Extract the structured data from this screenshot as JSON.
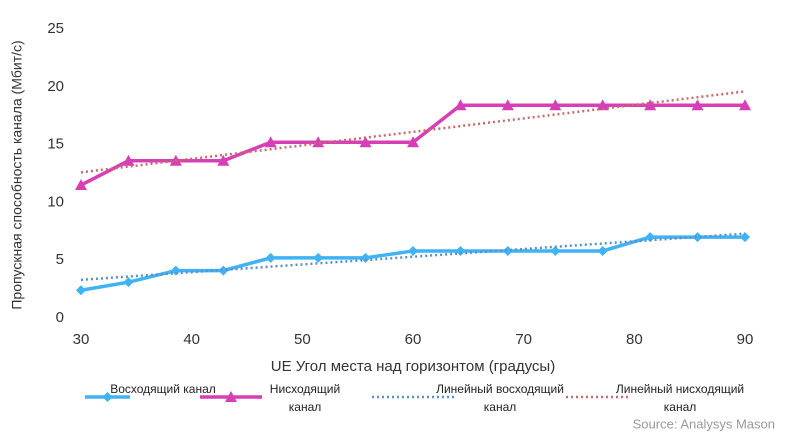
{
  "chart_data": {
    "type": "line",
    "x_label": "UE Угол места над горизонтом (градусы)",
    "y_label": "Пропускная способность канала (Мбит/с)",
    "source": "Source: Analysys Mason",
    "xlim": [
      30,
      90
    ],
    "xticks": [
      30,
      40,
      50,
      60,
      70,
      80,
      90
    ],
    "ylim": [
      0,
      25
    ],
    "yticks": [
      0,
      5,
      10,
      15,
      20,
      25
    ],
    "grid": false,
    "legend": "bottom",
    "series": [
      {
        "name": "Восходящий канал",
        "color": "#3fb3f5",
        "style": "solid",
        "marker": "diamond",
        "x": [
          30,
          34.29,
          38.57,
          42.86,
          47.14,
          51.43,
          55.71,
          60,
          64.29,
          68.57,
          72.86,
          77.14,
          81.43,
          85.71,
          90
        ],
        "values": [
          2.4,
          3.1,
          4.1,
          4.1,
          5.2,
          5.2,
          5.2,
          5.8,
          5.8,
          5.8,
          5.8,
          5.8,
          7.0,
          7.0,
          7.0
        ]
      },
      {
        "name": "Нисходящий канал",
        "color": "#d63fb5",
        "style": "solid",
        "marker": "triangle",
        "x": [
          30,
          34.29,
          38.57,
          42.86,
          47.14,
          51.43,
          55.71,
          60,
          64.29,
          68.57,
          72.86,
          77.14,
          81.43,
          85.71,
          90
        ],
        "values": [
          11.5,
          13.6,
          13.6,
          13.6,
          15.2,
          15.2,
          15.2,
          15.2,
          18.4,
          18.4,
          18.4,
          18.4,
          18.4,
          18.4,
          18.4
        ]
      },
      {
        "name": "Линейный восходящий канал",
        "color": "#5b8fc9",
        "style": "dotted",
        "marker": "none",
        "x": [
          30,
          90
        ],
        "values": [
          3.3,
          7.3
        ]
      },
      {
        "name": "Линейный нисходящий канал",
        "color": "#c86b6b",
        "style": "dotted",
        "marker": "none",
        "x": [
          30,
          90
        ],
        "values": [
          12.6,
          19.6
        ]
      }
    ]
  }
}
